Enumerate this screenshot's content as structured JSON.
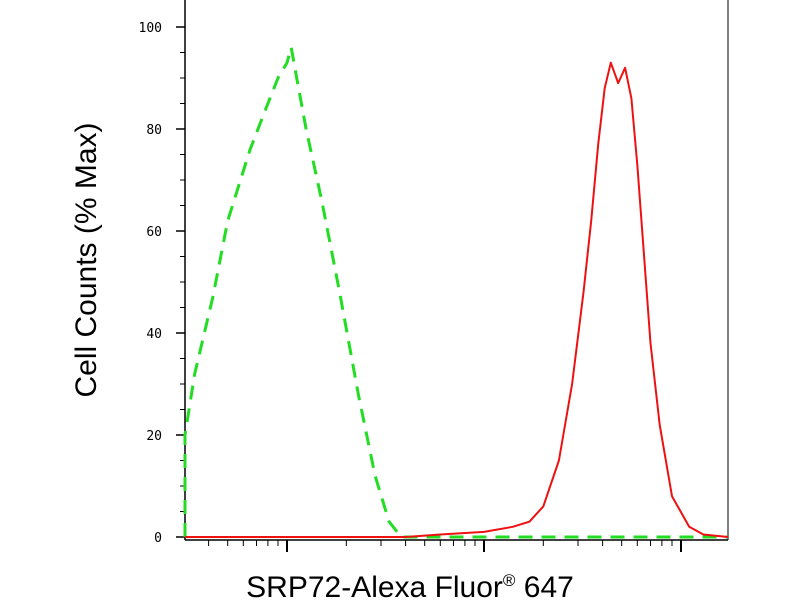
{
  "chart_data": {
    "type": "line",
    "title": "",
    "xlabel": "SRP72-Alexa Fluor",
    "xlabel_mark": "®",
    "xlabel_suffix": " 647",
    "ylabel": "Cell Counts (% Max)",
    "x_scale": "log",
    "x_ticks_labeled": false,
    "ylim": [
      0,
      100
    ],
    "y_ticks": [
      "0",
      "20",
      "40",
      "60",
      "80",
      "100"
    ],
    "grid": false,
    "legend": "none",
    "series": [
      {
        "line_style": "dashed",
        "color": "#22dd22",
        "x": [
          1.0,
          1.2,
          1.5,
          1.9,
          2.3,
          2.8,
          3.4,
          4.2,
          5.0,
          6.5,
          8.0,
          9.0,
          10.0,
          10.5,
          11.2,
          12.5,
          15.0,
          18.5,
          23.0,
          28.0,
          33.0,
          38.0,
          45.0,
          100.0,
          1000.0,
          10000.0
        ],
        "y": [
          0,
          0,
          3,
          8,
          13,
          20,
          32,
          47,
          62,
          76,
          85,
          90,
          93,
          96,
          90,
          80,
          66,
          48,
          28,
          12,
          3,
          0,
          0,
          0,
          0,
          0
        ]
      },
      {
        "line_style": "solid",
        "color": "#ee1111",
        "x": [
          1.0,
          5.0,
          10.0,
          20.0,
          40.0,
          60.0,
          100.0,
          140.0,
          170.0,
          200.0,
          240.0,
          280.0,
          320.0,
          350.0,
          380.0,
          410.0,
          440.0,
          480.0,
          520.0,
          560.0,
          600.0,
          650.0,
          700.0,
          780.0,
          900.0,
          1100.0,
          1300.0,
          2000.0,
          10000.0
        ],
        "y": [
          0,
          0,
          0,
          0,
          0,
          0.5,
          1,
          2,
          3,
          6,
          15,
          30,
          48,
          62,
          77,
          88,
          93,
          89,
          92,
          86,
          73,
          55,
          38,
          22,
          8,
          2,
          0.5,
          0,
          0
        ]
      }
    ]
  }
}
